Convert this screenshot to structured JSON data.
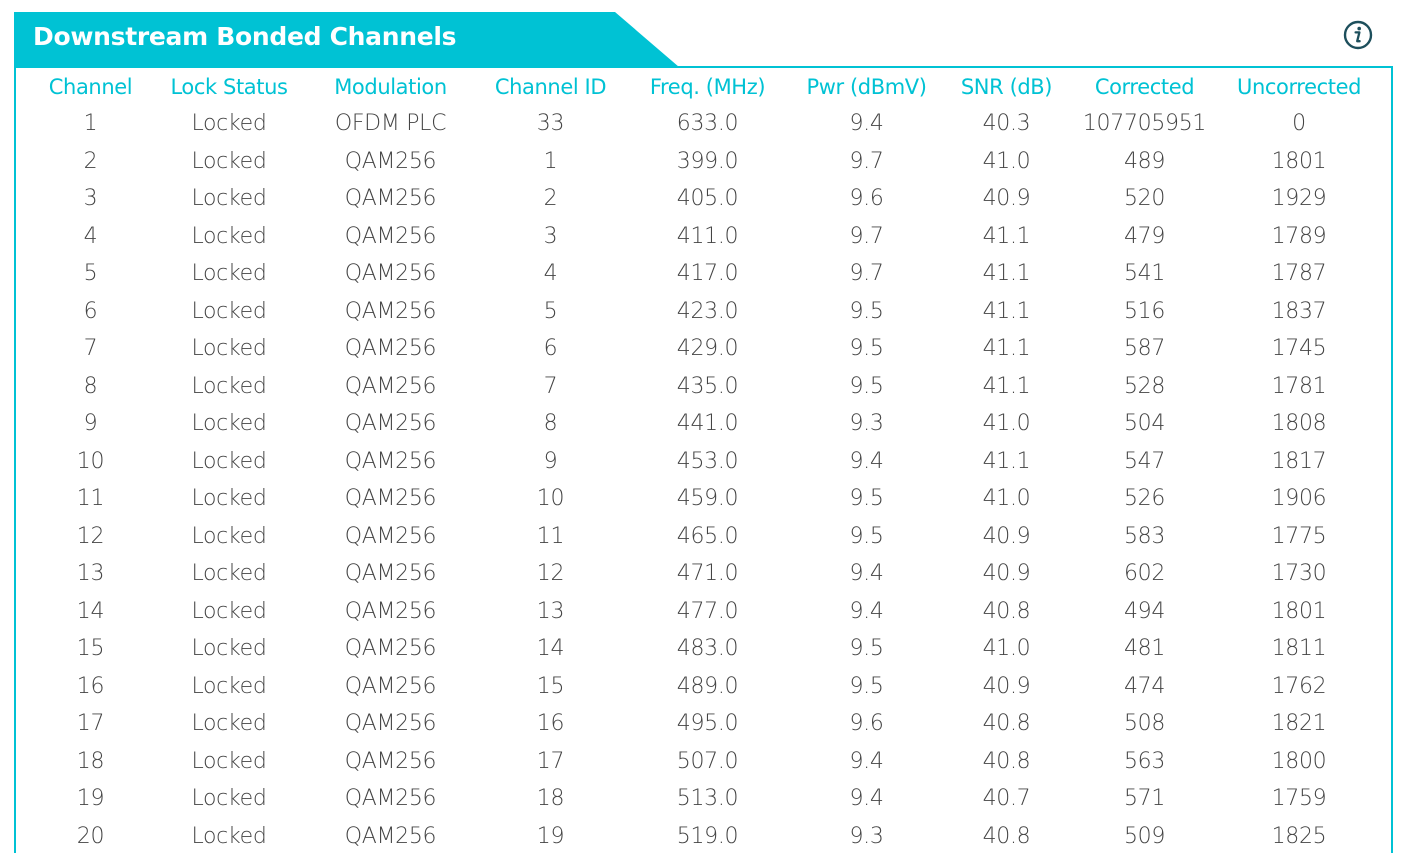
{
  "panel": {
    "title": "Downstream Bonded Channels",
    "info_icon": "info-icon"
  },
  "colors": {
    "accent": "#00c2d4",
    "text": "#444444",
    "background": "#ffffff"
  },
  "table": {
    "columns": [
      "Channel",
      "Lock Status",
      "Modulation",
      "Channel ID",
      "Freq. (MHz)",
      "Pwr (dBmV)",
      "SNR (dB)",
      "Corrected",
      "Uncorrected"
    ],
    "rows": [
      [
        "1",
        "Locked",
        "OFDM PLC",
        "33",
        "633.0",
        "9.4",
        "40.3",
        "107705951",
        "0"
      ],
      [
        "2",
        "Locked",
        "QAM256",
        "1",
        "399.0",
        "9.7",
        "41.0",
        "489",
        "1801"
      ],
      [
        "3",
        "Locked",
        "QAM256",
        "2",
        "405.0",
        "9.6",
        "40.9",
        "520",
        "1929"
      ],
      [
        "4",
        "Locked",
        "QAM256",
        "3",
        "411.0",
        "9.7",
        "41.1",
        "479",
        "1789"
      ],
      [
        "5",
        "Locked",
        "QAM256",
        "4",
        "417.0",
        "9.7",
        "41.1",
        "541",
        "1787"
      ],
      [
        "6",
        "Locked",
        "QAM256",
        "5",
        "423.0",
        "9.5",
        "41.1",
        "516",
        "1837"
      ],
      [
        "7",
        "Locked",
        "QAM256",
        "6",
        "429.0",
        "9.5",
        "41.1",
        "587",
        "1745"
      ],
      [
        "8",
        "Locked",
        "QAM256",
        "7",
        "435.0",
        "9.5",
        "41.1",
        "528",
        "1781"
      ],
      [
        "9",
        "Locked",
        "QAM256",
        "8",
        "441.0",
        "9.3",
        "41.0",
        "504",
        "1808"
      ],
      [
        "10",
        "Locked",
        "QAM256",
        "9",
        "453.0",
        "9.4",
        "41.1",
        "547",
        "1817"
      ],
      [
        "11",
        "Locked",
        "QAM256",
        "10",
        "459.0",
        "9.5",
        "41.0",
        "526",
        "1906"
      ],
      [
        "12",
        "Locked",
        "QAM256",
        "11",
        "465.0",
        "9.5",
        "40.9",
        "583",
        "1775"
      ],
      [
        "13",
        "Locked",
        "QAM256",
        "12",
        "471.0",
        "9.4",
        "40.9",
        "602",
        "1730"
      ],
      [
        "14",
        "Locked",
        "QAM256",
        "13",
        "477.0",
        "9.4",
        "40.8",
        "494",
        "1801"
      ],
      [
        "15",
        "Locked",
        "QAM256",
        "14",
        "483.0",
        "9.5",
        "41.0",
        "481",
        "1811"
      ],
      [
        "16",
        "Locked",
        "QAM256",
        "15",
        "489.0",
        "9.5",
        "40.9",
        "474",
        "1762"
      ],
      [
        "17",
        "Locked",
        "QAM256",
        "16",
        "495.0",
        "9.6",
        "40.8",
        "508",
        "1821"
      ],
      [
        "18",
        "Locked",
        "QAM256",
        "17",
        "507.0",
        "9.4",
        "40.8",
        "563",
        "1800"
      ],
      [
        "19",
        "Locked",
        "QAM256",
        "18",
        "513.0",
        "9.4",
        "40.7",
        "571",
        "1759"
      ],
      [
        "20",
        "Locked",
        "QAM256",
        "19",
        "519.0",
        "9.3",
        "40.8",
        "509",
        "1825"
      ]
    ]
  }
}
